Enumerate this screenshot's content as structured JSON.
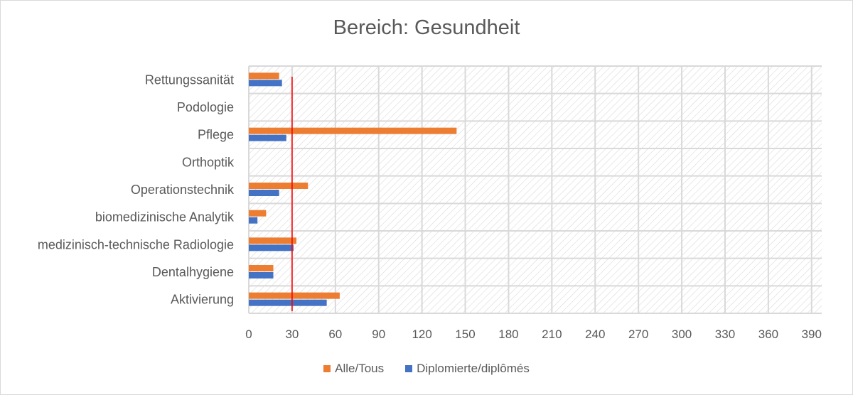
{
  "chart_data": {
    "type": "bar",
    "orientation": "horizontal",
    "title": "Bereich: Gesundheit",
    "categories": [
      "Rettungssanität",
      "Podologie",
      "Pflege",
      "Orthoptik",
      "Operationstechnik",
      "biomedizinische Analytik",
      "medizinisch-technische Radiologie",
      "Dentalhygiene",
      "Aktivierung"
    ],
    "series": [
      {
        "name": "Alle/Tous",
        "color": "#ED7D31",
        "values": [
          21,
          0,
          144,
          0,
          41,
          12,
          33,
          17,
          63
        ]
      },
      {
        "name": "Diplomierte/diplômés",
        "color": "#4472C4",
        "values": [
          23,
          0,
          26,
          0,
          21,
          6,
          31,
          17,
          54
        ]
      }
    ],
    "reference_line": {
      "value": 30,
      "color": "#FF0000"
    },
    "xticks": [
      0,
      30,
      60,
      90,
      120,
      150,
      180,
      210,
      240,
      270,
      300,
      330,
      360,
      390
    ],
    "xlim": [
      0,
      397
    ],
    "grid": true,
    "plot_background": "diagonal hatch",
    "legend": "bottom"
  }
}
